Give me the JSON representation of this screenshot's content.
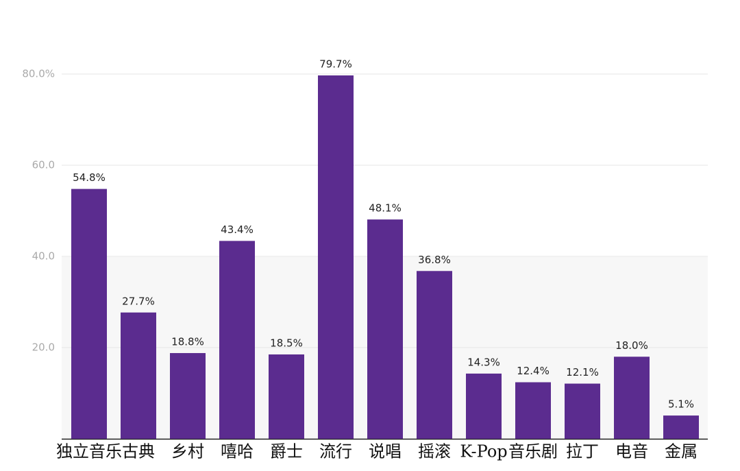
{
  "chart_data": {
    "type": "bar",
    "categories": [
      "独立音乐",
      "古典",
      "乡村",
      "嘻哈",
      "爵士",
      "流行",
      "说唱",
      "摇滚",
      "K-Pop",
      "音乐剧",
      "拉丁",
      "电音",
      "金属"
    ],
    "values": [
      54.8,
      27.7,
      18.8,
      43.4,
      18.5,
      79.7,
      48.1,
      36.8,
      14.3,
      12.4,
      12.1,
      18.0,
      5.1
    ],
    "value_labels": [
      "54.8%",
      "27.7%",
      "18.8%",
      "43.4%",
      "18.5%",
      "79.7%",
      "48.1%",
      "36.8%",
      "14.3%",
      "12.4%",
      "12.1%",
      "18.0%",
      "5.1%"
    ],
    "color": "#5b2c8f",
    "ylim": [
      0,
      80
    ],
    "yticks": [
      {
        "value": 20,
        "label": "20.0"
      },
      {
        "value": 40,
        "label": "40.0"
      },
      {
        "value": 60,
        "label": "60.0"
      },
      {
        "value": 80,
        "label": "80.0%"
      }
    ],
    "grid": true
  }
}
